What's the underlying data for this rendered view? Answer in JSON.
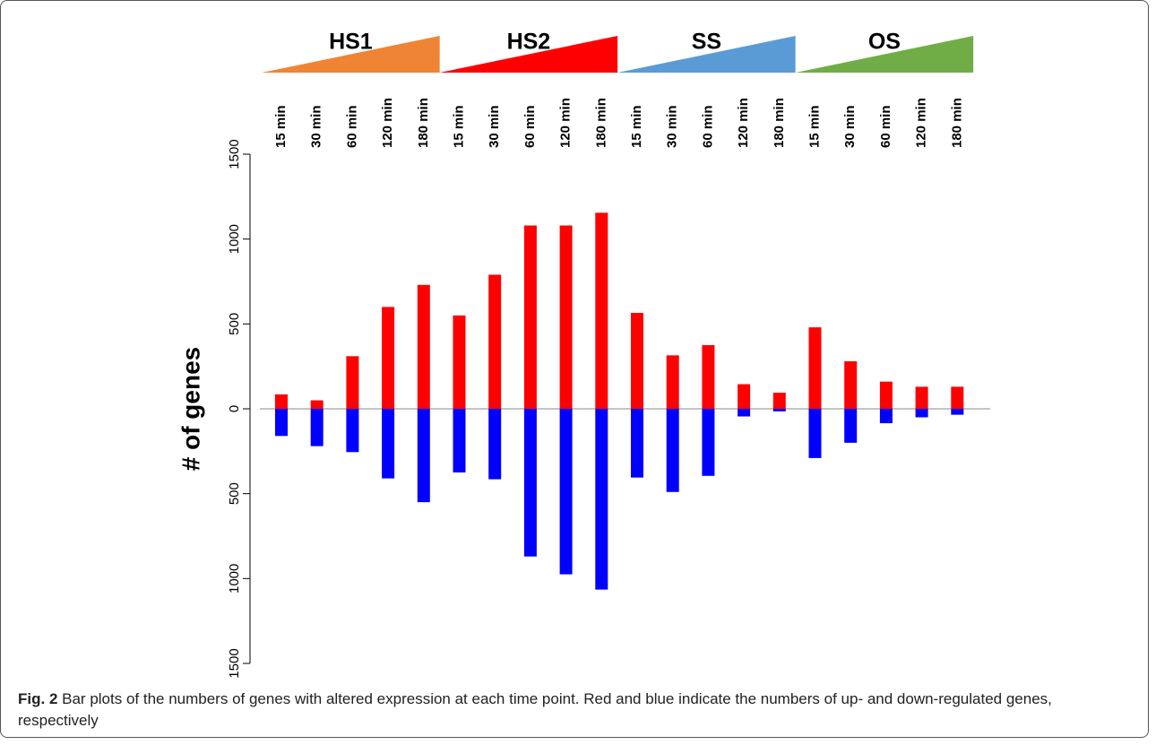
{
  "chart_data": {
    "type": "bar",
    "groups": [
      {
        "name": "HS1",
        "color": "#ef8434"
      },
      {
        "name": "HS2",
        "color": "#ff0000"
      },
      {
        "name": "SS",
        "color": "#5b9bd5"
      },
      {
        "name": "OS",
        "color": "#70ad47"
      }
    ],
    "categories": [
      "15 min",
      "30 min",
      "60 min",
      "120 min",
      "180 min",
      "15 min",
      "30 min",
      "60 min",
      "120 min",
      "180 min",
      "15 min",
      "30 min",
      "60 min",
      "120 min",
      "180 min",
      "15 min",
      "30 min",
      "60 min",
      "120 min",
      "180 min"
    ],
    "series": [
      {
        "color": "#ff0000",
        "values": [
          85,
          50,
          310,
          600,
          730,
          550,
          790,
          1080,
          1080,
          1155,
          565,
          315,
          375,
          145,
          95,
          480,
          280,
          160,
          130,
          130
        ]
      },
      {
        "color": "#0000ff",
        "values": [
          -160,
          -220,
          -255,
          -410,
          -550,
          -375,
          -415,
          -870,
          -975,
          -1065,
          -405,
          -490,
          -395,
          -45,
          -15,
          -290,
          -200,
          -85,
          -50,
          -35
        ]
      }
    ],
    "y_label": "# of genes",
    "ylim": [
      -1500,
      1500
    ],
    "yticks": [
      {
        "value": -1500,
        "label": "1500"
      },
      {
        "value": -1000,
        "label": "1000"
      },
      {
        "value": -500,
        "label": "500"
      },
      0,
      500,
      1000,
      1500
    ]
  },
  "caption": {
    "label": "Fig. 2",
    "text": "Bar plots of the numbers of genes with altered expression at each time point. Red and blue indicate the numbers of up- and down-regulated genes, respectively"
  }
}
